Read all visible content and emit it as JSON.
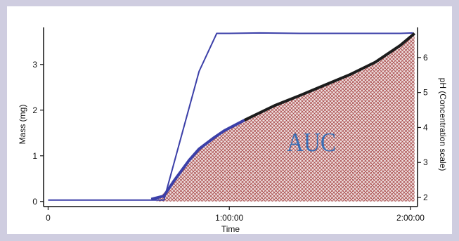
{
  "chart_data": {
    "type": "line",
    "title": "",
    "xlabel": "Time",
    "ylabel_left": "Mass (mg)",
    "ylabel_right": "pH (Concentration scale)",
    "annotation": "AUC",
    "x_ticks": [
      "0",
      "1:00:00",
      "2:00:00"
    ],
    "x_tick_values": [
      0,
      3600,
      7200
    ],
    "xlim": [
      -90,
      7340
    ],
    "y_left_ticks": [
      "0",
      "1",
      "2",
      "3"
    ],
    "y_left_tick_values": [
      0,
      1,
      2,
      3
    ],
    "ylim_left": [
      -0.05,
      3.75
    ],
    "y_right_ticks": [
      "2",
      "3",
      "4",
      "5",
      "6"
    ],
    "y_right_tick_values": [
      2,
      3,
      4,
      5,
      6
    ],
    "ylim_right": [
      1.82,
      6.78
    ],
    "colors": {
      "blue": "#3b3fa8",
      "black": "#1c1c1c",
      "auc_fill": "#a84848",
      "auc_label": "#3a6fb5"
    },
    "series": [
      {
        "name": "",
        "axis": "left",
        "color": "#3b3fa8",
        "x": [
          0,
          2050,
          2300,
          3000,
          3350,
          3600,
          4200,
          5000,
          6000,
          7000,
          7250
        ],
        "y": [
          0.03,
          0.03,
          0.03,
          2.85,
          3.68,
          3.68,
          3.69,
          3.68,
          3.68,
          3.68,
          3.69
        ]
      },
      {
        "name": "",
        "axis": "left",
        "color": "#3b3fa8",
        "x": [
          2050,
          2300,
          2500,
          2800,
          3000,
          3300,
          3500,
          3900
        ],
        "y": [
          0.05,
          0.12,
          0.45,
          0.9,
          1.15,
          1.4,
          1.55,
          1.78
        ]
      },
      {
        "name": "",
        "axis": "left",
        "color": "#1c1c1c",
        "x": [
          3900,
          4500,
          5000,
          5500,
          6000,
          6500,
          7000,
          7280
        ],
        "y": [
          1.78,
          2.1,
          2.32,
          2.55,
          2.78,
          3.05,
          3.42,
          3.68
        ]
      }
    ],
    "auc_region": {
      "x": [
        2150,
        2500,
        2800,
        3000,
        3300,
        3500,
        3900,
        4500,
        5000,
        5500,
        6000,
        6500,
        7000,
        7280
      ],
      "y": [
        0.0,
        0.45,
        0.9,
        1.15,
        1.4,
        1.55,
        1.78,
        2.1,
        2.32,
        2.55,
        2.78,
        3.05,
        3.42,
        3.68
      ]
    }
  }
}
